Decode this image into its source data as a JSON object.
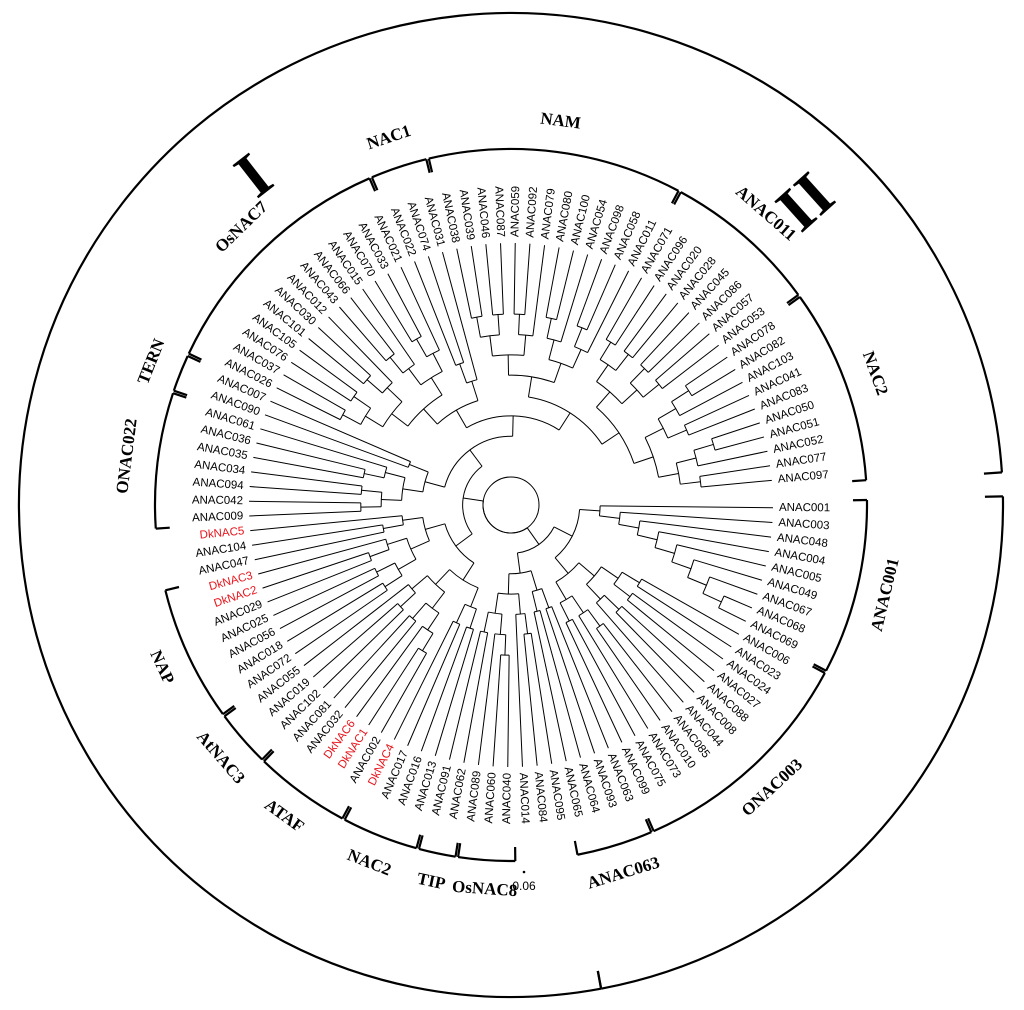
{
  "colors": {
    "highlight": "#e8141b",
    "default": "#000000"
  },
  "leaves": [
    "ANAC001",
    "ANAC003",
    "ANAC048",
    "ANAC004",
    "ANAC005",
    "ANAC049",
    "ANAC067",
    "ANAC068",
    "ANAC069",
    "ANAC006",
    "ANAC023",
    "ANAC024",
    "ANAC027",
    "ANAC088",
    "ANAC008",
    "ANAC044",
    "ANAC085",
    "ANAC010",
    "ANAC073",
    "ANAC075",
    "ANAC099",
    "ANAC063",
    "ANAC093",
    "ANAC064",
    "ANAC065",
    "ANAC095",
    "ANAC084",
    "ANAC014",
    "ANAC040",
    "ANAC060",
    "ANAC089",
    "ANAC062",
    "ANAC091",
    "ANAC013",
    "ANAC016",
    "ANAC017",
    "DkNAC4",
    "ANAC002",
    "DkNAC1",
    "DkNAC6",
    "ANAC032",
    "ANAC081",
    "ANAC102",
    "ANAC019",
    "ANAC055",
    "ANAC072",
    "ANAC018",
    "ANAC056",
    "ANAC025",
    "ANAC029",
    "DkNAC2",
    "DkNAC3",
    "ANAC047",
    "ANAC104",
    "DkNAC5",
    "ANAC009",
    "ANAC042",
    "ANAC094",
    "ANAC034",
    "ANAC035",
    "ANAC036",
    "ANAC061",
    "ANAC090",
    "ANAC007",
    "ANAC026",
    "ANAC037",
    "ANAC076",
    "ANAC105",
    "ANAC101",
    "ANAC030",
    "ANAC012",
    "ANAC043",
    "ANAC066",
    "ANAC015",
    "ANAC070",
    "ANAC033",
    "ANAC021",
    "ANAC022",
    "ANAC074",
    "ANAC031",
    "ANAC038",
    "ANAC039",
    "ANAC046",
    "ANAC087",
    "ANAC059",
    "ANAC092",
    "ANAC079",
    "ANAC080",
    "ANAC100",
    "ANAC054",
    "ANAC098",
    "ANAC058",
    "ANAC011",
    "ANAC071",
    "ANAC096",
    "ANAC020",
    "ANAC028",
    "ANAC045",
    "ANAC086",
    "ANAC057",
    "ANAC053",
    "ANAC078",
    "ANAC082",
    "ANAC103",
    "ANAC041",
    "ANAC083",
    "ANAC050",
    "ANAC051",
    "ANAC052",
    "ANAC077",
    "ANAC097"
  ],
  "highlighted": [
    "DkNAC1",
    "DkNAC2",
    "DkNAC3",
    "DkNAC4",
    "DkNAC5",
    "DkNAC6"
  ],
  "subgroups": [
    {
      "label": "ANAC001",
      "from": 0,
      "to": 8
    },
    {
      "label": "ONAC003",
      "from": 9,
      "to": 20
    },
    {
      "label": "ANAC063",
      "from": 21,
      "to": 24
    },
    {
      "label": "OsNAC8",
      "from": 28,
      "to": 30
    },
    {
      "label": "TIP",
      "from": 31,
      "to": 32
    },
    {
      "label": "NAC2",
      "from": 33,
      "to": 36
    },
    {
      "label": "ATAF",
      "from": 37,
      "to": 41
    },
    {
      "label": "AtNAC3",
      "from": 42,
      "to": 44
    },
    {
      "label": "NAP",
      "from": 45,
      "to": 51
    },
    {
      "label": "ONAC022",
      "from": 55,
      "to": 61
    },
    {
      "label": "TERN",
      "from": 62,
      "to": 63
    },
    {
      "label": "OsNAC7",
      "from": 64,
      "to": 76
    },
    {
      "label": "NAC1",
      "from": 77,
      "to": 79
    },
    {
      "label": "NAM",
      "from": 80,
      "to": 92
    },
    {
      "label": "ANAC011",
      "from": 93,
      "to": 100
    },
    {
      "label": "NAC2",
      "from": 101,
      "to": 110
    }
  ],
  "groups": [
    {
      "label": "I",
      "from": 25,
      "to": 110
    },
    {
      "label": "II",
      "from": 0,
      "to": 24
    }
  ],
  "scale_bar": "0.06"
}
